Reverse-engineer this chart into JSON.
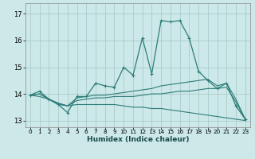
{
  "bg_color": "#cce8e8",
  "line_color": "#2d7d78",
  "grid_color": "#aacccc",
  "xlabel": "Humidex (Indice chaleur)",
  "xlim": [
    -0.5,
    23.5
  ],
  "ylim": [
    12.75,
    17.4
  ],
  "yticks": [
    13,
    14,
    15,
    16,
    17
  ],
  "xticks": [
    0,
    1,
    2,
    3,
    4,
    5,
    6,
    7,
    8,
    9,
    10,
    11,
    12,
    13,
    14,
    15,
    16,
    17,
    18,
    19,
    20,
    21,
    22,
    23
  ],
  "series": [
    {
      "x": [
        0,
        1,
        2,
        3,
        4,
        5,
        6,
        7,
        8,
        9,
        10,
        11,
        12,
        13,
        14,
        15,
        16,
        17,
        18,
        19,
        20,
        21,
        22,
        23
      ],
      "y": [
        13.95,
        14.1,
        13.8,
        13.6,
        13.3,
        13.9,
        13.9,
        14.4,
        14.3,
        14.25,
        15.0,
        14.7,
        16.1,
        14.75,
        16.75,
        16.7,
        16.75,
        16.1,
        14.85,
        14.5,
        14.2,
        14.4,
        13.55,
        13.05
      ],
      "has_markers": true
    },
    {
      "x": [
        0,
        1,
        2,
        3,
        4,
        5,
        6,
        7,
        8,
        9,
        10,
        11,
        12,
        13,
        14,
        15,
        16,
        17,
        18,
        19,
        20,
        21,
        22,
        23
      ],
      "y": [
        13.95,
        14.0,
        13.8,
        13.6,
        13.55,
        13.85,
        13.9,
        13.95,
        13.95,
        14.0,
        14.05,
        14.1,
        14.15,
        14.2,
        14.3,
        14.35,
        14.4,
        14.45,
        14.5,
        14.55,
        14.3,
        14.4,
        13.8,
        13.05
      ],
      "has_markers": false
    },
    {
      "x": [
        0,
        1,
        2,
        3,
        4,
        5,
        6,
        7,
        8,
        9,
        10,
        11,
        12,
        13,
        14,
        15,
        16,
        17,
        18,
        19,
        20,
        21,
        22,
        23
      ],
      "y": [
        13.95,
        14.0,
        13.8,
        13.65,
        13.55,
        13.75,
        13.8,
        13.85,
        13.85,
        13.9,
        13.9,
        13.9,
        13.95,
        14.0,
        14.0,
        14.05,
        14.1,
        14.1,
        14.15,
        14.2,
        14.2,
        14.25,
        13.7,
        13.05
      ],
      "has_markers": false
    },
    {
      "x": [
        0,
        1,
        2,
        3,
        4,
        5,
        6,
        7,
        8,
        9,
        10,
        11,
        12,
        13,
        14,
        15,
        16,
        17,
        18,
        19,
        20,
        21,
        22,
        23
      ],
      "y": [
        13.95,
        13.9,
        13.8,
        13.65,
        13.55,
        13.6,
        13.6,
        13.6,
        13.6,
        13.6,
        13.55,
        13.5,
        13.5,
        13.45,
        13.45,
        13.4,
        13.35,
        13.3,
        13.25,
        13.2,
        13.15,
        13.1,
        13.05,
        13.0
      ],
      "has_markers": false
    }
  ]
}
